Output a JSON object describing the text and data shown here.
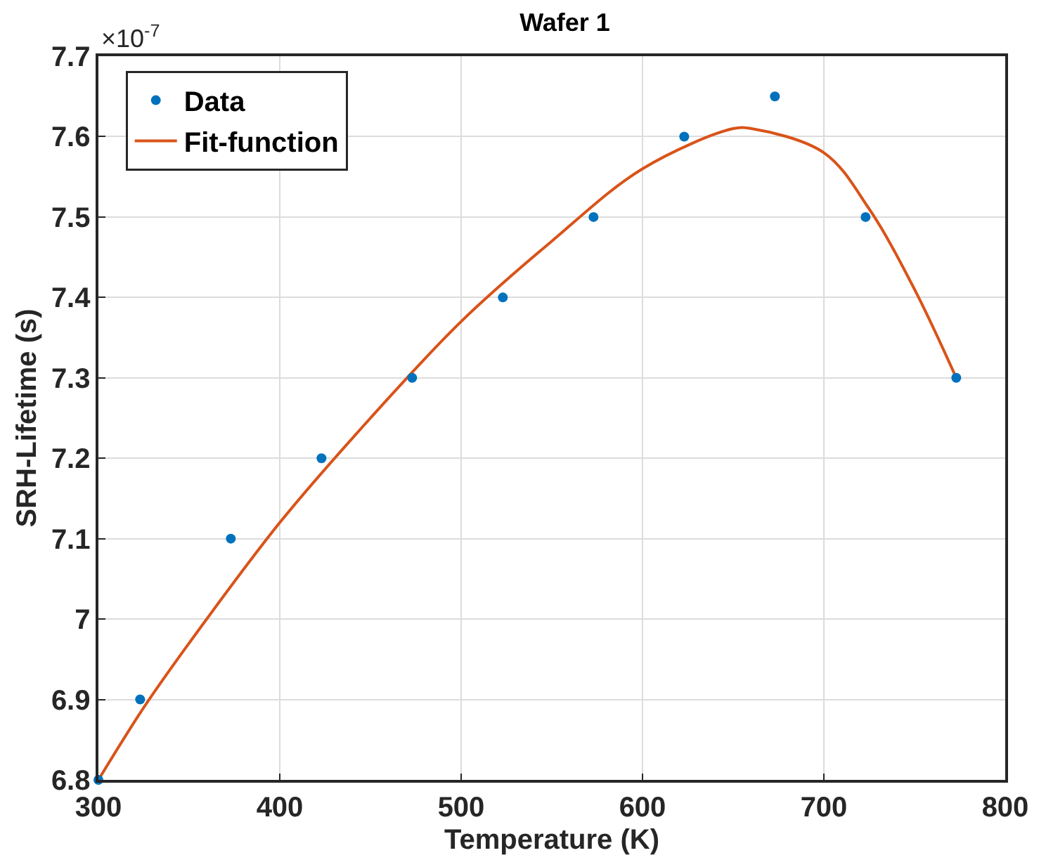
{
  "chart_data": {
    "type": "scatter",
    "title": "Wafer 1",
    "xlabel": "Temperature (K)",
    "ylabel": "SRH-Lifetime (s)",
    "annotations": [
      "×10$^{-7}$"
    ],
    "series": [
      {
        "name": "Data",
        "color": "#0072bd",
        "marker": "circle",
        "x": [
          300,
          323,
          373,
          423,
          473,
          523,
          573,
          623,
          673,
          723,
          773
        ],
        "values": [
          6.8,
          6.9,
          7.1,
          7.2,
          7.3,
          7.4,
          7.5,
          7.6,
          7.65,
          7.5,
          7.3
        ]
      },
      {
        "name": "Fit-function",
        "type": "line",
        "color": "#d95319",
        "line_style": "solid",
        "x": [
          300,
          325,
          350,
          400,
          450,
          500,
          550,
          600,
          650,
          660,
          700,
          725,
          750,
          773
        ],
        "values": [
          6.8,
          6.89,
          6.97,
          7.12,
          7.25,
          7.37,
          7.47,
          7.56,
          7.61,
          7.61,
          7.58,
          7.51,
          7.41,
          7.3
        ]
      }
    ],
    "xlim": [
      300,
      800
    ],
    "xticks": [
      300,
      400,
      500,
      600,
      700,
      800
    ],
    "ylim": [
      6.8,
      7.7
    ],
    "yticks": [
      6.8,
      6.9,
      7,
      7.1,
      7.2,
      7.3,
      7.4,
      7.5,
      7.6,
      7.7
    ],
    "grid": true,
    "legend": "top left"
  }
}
